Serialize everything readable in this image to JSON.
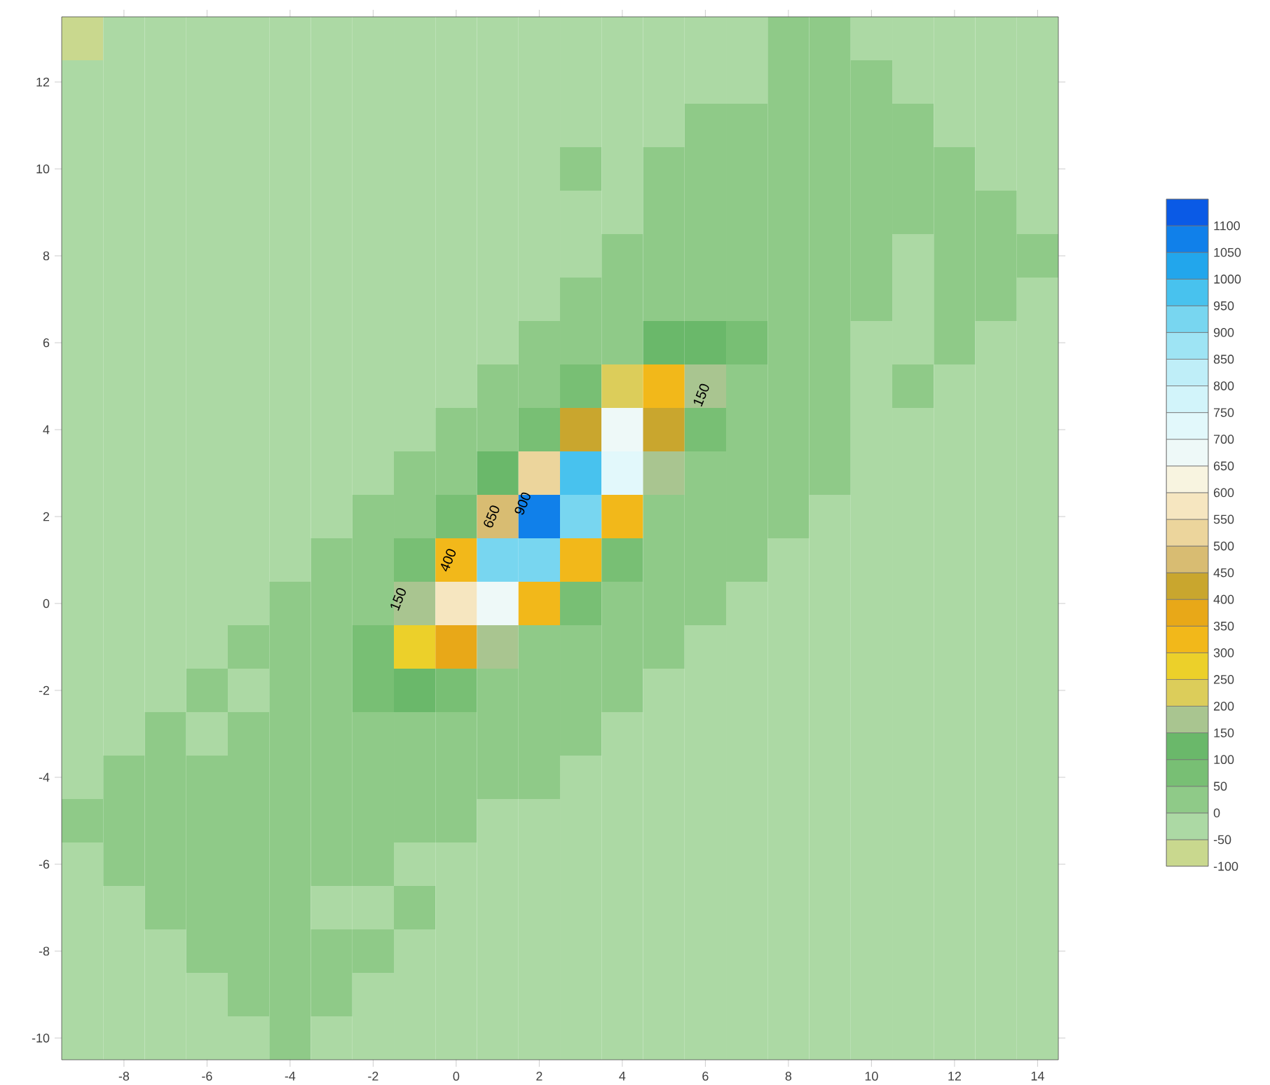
{
  "chart_data": {
    "type": "heatmap",
    "categories": [
      null,
      "-8",
      null,
      "-6",
      null,
      "-4",
      null,
      "-2",
      null,
      "0",
      null,
      "2",
      null,
      "4",
      null,
      "6",
      null,
      "8",
      null,
      "10",
      null,
      "12",
      null,
      "14"
    ],
    "y_categories": [
      null,
      "12",
      null,
      "10",
      null,
      "8",
      null,
      "6",
      null,
      "4",
      null,
      "2",
      null,
      "0",
      null,
      "-2",
      null,
      "-4",
      null,
      "-6",
      null,
      "-8",
      null,
      "-10"
    ],
    "cells": [
      [
        -75,
        -25,
        -25,
        -25,
        -25,
        -25,
        -25,
        -25,
        -25,
        -25,
        -25,
        -25,
        -25,
        -25,
        -25,
        -25,
        -25,
        25,
        25,
        -25,
        -25,
        -25,
        -25,
        -25
      ],
      [
        -25,
        -25,
        -25,
        -25,
        -25,
        -25,
        -25,
        -25,
        -25,
        -25,
        -25,
        -25,
        -25,
        -25,
        -25,
        -25,
        -25,
        25,
        25,
        25,
        -25,
        -25,
        -25,
        -25
      ],
      [
        -25,
        -25,
        -25,
        -25,
        -25,
        -25,
        -25,
        -25,
        -25,
        -25,
        -25,
        -25,
        -25,
        -25,
        -25,
        25,
        25,
        25,
        25,
        25,
        25,
        -25,
        -25,
        -25
      ],
      [
        -25,
        -25,
        -25,
        -25,
        -25,
        -25,
        -25,
        -25,
        -25,
        -25,
        -25,
        -25,
        25,
        -25,
        25,
        25,
        25,
        25,
        25,
        25,
        25,
        25,
        -25,
        -25
      ],
      [
        -25,
        -25,
        -25,
        -25,
        -25,
        -25,
        -25,
        -25,
        -25,
        -25,
        -25,
        -25,
        -25,
        -25,
        25,
        25,
        25,
        25,
        25,
        25,
        25,
        25,
        25,
        -25
      ],
      [
        -25,
        -25,
        -25,
        -25,
        -25,
        -25,
        -25,
        -25,
        -25,
        -25,
        -25,
        -25,
        -25,
        25,
        25,
        25,
        25,
        25,
        25,
        25,
        -25,
        25,
        25,
        25
      ],
      [
        -25,
        -25,
        -25,
        -25,
        -25,
        -25,
        -25,
        -25,
        -25,
        -25,
        -25,
        -25,
        25,
        25,
        25,
        25,
        25,
        25,
        25,
        25,
        -25,
        25,
        25,
        -25
      ],
      [
        -25,
        -25,
        -25,
        -25,
        -25,
        -25,
        -25,
        -25,
        -25,
        -25,
        -25,
        25,
        25,
        30,
        100,
        120,
        50,
        25,
        25,
        -25,
        -25,
        25,
        -25,
        -25
      ],
      [
        -25,
        -25,
        -25,
        -25,
        -25,
        -25,
        -25,
        -25,
        -25,
        -25,
        25,
        25,
        60,
        230,
        330,
        170,
        30,
        25,
        25,
        -25,
        25,
        -25,
        -25,
        -25
      ],
      [
        -25,
        -25,
        -25,
        -25,
        -25,
        -25,
        -25,
        -25,
        -25,
        25,
        25,
        90,
        400,
        650,
        400,
        90,
        25,
        25,
        25,
        -25,
        -25,
        -25,
        -25,
        -25
      ],
      [
        -25,
        -25,
        -25,
        -25,
        -25,
        -25,
        -25,
        -25,
        25,
        25,
        100,
        510,
        980,
        710,
        190,
        25,
        25,
        25,
        25,
        -25,
        -25,
        -25,
        -25,
        -25
      ],
      [
        -25,
        -25,
        -25,
        -25,
        -25,
        -25,
        -25,
        25,
        25,
        80,
        470,
        1090,
        930,
        300,
        40,
        25,
        25,
        25,
        -25,
        -25,
        -25,
        -25,
        -25,
        -25
      ],
      [
        -25,
        -25,
        -25,
        -25,
        -25,
        -25,
        25,
        25,
        50,
        330,
        900,
        910,
        340,
        50,
        25,
        25,
        25,
        -25,
        -25,
        -25,
        -25,
        -25,
        -25,
        -25
      ],
      [
        -25,
        -25,
        -25,
        -25,
        -25,
        25,
        25,
        25,
        170,
        550,
        660,
        300,
        50,
        25,
        25,
        25,
        -25,
        -25,
        -25,
        -25,
        -25,
        -25,
        -25,
        -25
      ],
      [
        -25,
        -25,
        -25,
        -25,
        25,
        25,
        25,
        70,
        250,
        360,
        190,
        40,
        25,
        25,
        25,
        -25,
        -25,
        -25,
        -25,
        -25,
        -25,
        -25,
        -25,
        -25
      ],
      [
        -25,
        -25,
        -25,
        25,
        -25,
        25,
        25,
        80,
        140,
        90,
        25,
        25,
        25,
        25,
        -25,
        -25,
        -25,
        -25,
        -25,
        -25,
        -25,
        -25,
        -25,
        -25
      ],
      [
        -25,
        -25,
        25,
        -25,
        25,
        25,
        25,
        40,
        30,
        25,
        25,
        25,
        25,
        -25,
        -25,
        -25,
        -25,
        -25,
        -25,
        -25,
        -25,
        -25,
        -25,
        -25
      ],
      [
        -25,
        25,
        25,
        25,
        25,
        25,
        25,
        25,
        25,
        25,
        25,
        25,
        -25,
        -25,
        -25,
        -25,
        -25,
        -25,
        -25,
        -25,
        -25,
        -25,
        -25,
        -25
      ],
      [
        25,
        25,
        25,
        25,
        25,
        25,
        25,
        25,
        25,
        25,
        -25,
        -25,
        -25,
        -25,
        -25,
        -25,
        -25,
        -25,
        -25,
        -25,
        -25,
        -25,
        -25,
        -25
      ],
      [
        -25,
        25,
        25,
        25,
        25,
        25,
        25,
        25,
        -25,
        -25,
        -25,
        -25,
        -25,
        -25,
        -25,
        -25,
        -25,
        -25,
        -25,
        -25,
        -25,
        -25,
        -25,
        -25
      ],
      [
        -25,
        -25,
        25,
        25,
        25,
        25,
        -25,
        -25,
        25,
        -25,
        -25,
        -25,
        -25,
        -25,
        -25,
        -25,
        -25,
        -25,
        -25,
        -25,
        -25,
        -25,
        -25,
        -25
      ],
      [
        -25,
        -25,
        -25,
        25,
        25,
        25,
        25,
        25,
        -25,
        -25,
        -25,
        -25,
        -25,
        -25,
        -25,
        -25,
        -25,
        -25,
        -25,
        -25,
        -25,
        -25,
        -25,
        -25
      ],
      [
        -25,
        -25,
        -25,
        -25,
        25,
        25,
        25,
        -25,
        -25,
        -25,
        -25,
        -25,
        -25,
        -25,
        -25,
        -25,
        -25,
        -25,
        -25,
        -25,
        -25,
        -25,
        -25,
        -25
      ],
      [
        -25,
        -25,
        -25,
        -25,
        -25,
        25,
        -25,
        -25,
        -25,
        -25,
        -25,
        -25,
        -25,
        -25,
        -25,
        -25,
        -25,
        -25,
        -25,
        -25,
        -25,
        -25,
        -25,
        -25
      ]
    ],
    "clim": [
      -100,
      1150
    ],
    "cticks": [
      -100,
      -50,
      0,
      50,
      100,
      150,
      200,
      250,
      300,
      350,
      400,
      450,
      500,
      550,
      600,
      650,
      700,
      750,
      800,
      850,
      900,
      950,
      1000,
      1050,
      1100
    ],
    "annotations": [
      "150",
      "400",
      "650",
      "900",
      "150"
    ]
  }
}
